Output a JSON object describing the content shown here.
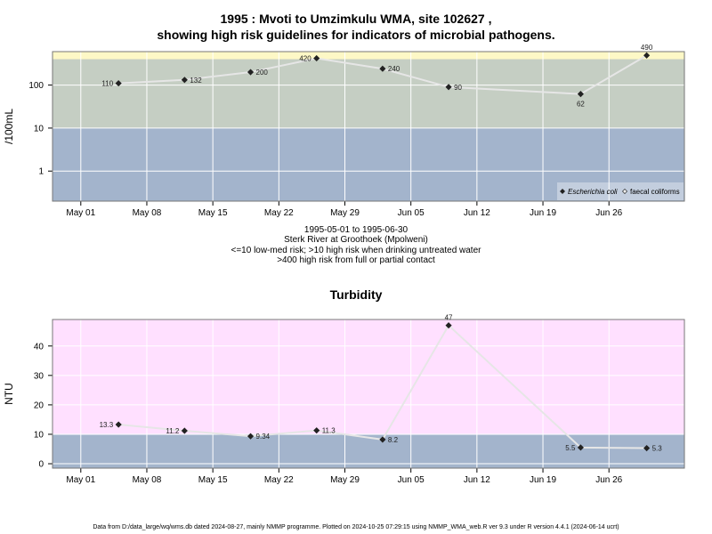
{
  "title_line1": "1995 : Mvoti to Umzimkulu WMA, site 102627 ,",
  "title_line2": "showing high risk guidelines for indicators of microbial pathogens.",
  "caption": {
    "line1": "1995-05-01 to 1995-06-30",
    "line2": "Sterk River at Groothoek (Mpolweni)",
    "line3": "<=10 low-med risk; >10 high risk when drinking untreated water",
    "line4": ">400 high risk from full or partial contact"
  },
  "footer": "Data from D:/data_large/wq/wms.db dated 2024-08-27, mainly NMMP programme. Plotted on 2024-10-25 07:29:15 using NMMP_WMA_web.R ver 9.3 under R version 4.4.1 (2024-06-14 ucrt)",
  "x_ticks": [
    {
      "label": "May 01",
      "date": "1995-05-01"
    },
    {
      "label": "May 08",
      "date": "1995-05-08"
    },
    {
      "label": "May 15",
      "date": "1995-05-15"
    },
    {
      "label": "May 22",
      "date": "1995-05-22"
    },
    {
      "label": "May 29",
      "date": "1995-05-29"
    },
    {
      "label": "Jun 05",
      "date": "1995-06-05"
    },
    {
      "label": "Jun 12",
      "date": "1995-06-12"
    },
    {
      "label": "Jun 19",
      "date": "1995-06-19"
    },
    {
      "label": "Jun 26",
      "date": "1995-06-26"
    }
  ],
  "chart_data": [
    {
      "type": "line",
      "ylabel": "/100mL",
      "y_scale": "log10",
      "xlim": [
        "1995-04-28",
        "1995-07-04"
      ],
      "ylim": [
        0.2,
        600
      ],
      "y_ticks": [
        1,
        10,
        100
      ],
      "y_tick_labels": [
        "1",
        "10",
        "100"
      ],
      "grid": true,
      "legend_position": "bottom-right",
      "bands": [
        {
          "from": 0.2,
          "to": 10,
          "color": "#a3b4cc"
        },
        {
          "from": 10,
          "to": 400,
          "color": "#c5cec3"
        },
        {
          "from": 400,
          "to": 600,
          "color": "#fdf8c6"
        }
      ],
      "series": [
        {
          "name": "Escherichia coli",
          "marker": "filled-diamond",
          "points": [
            {
              "date": "1995-05-05",
              "value": 110,
              "label": "110",
              "label_side": "left"
            },
            {
              "date": "1995-05-12",
              "value": 132,
              "label": "132",
              "label_side": "right"
            },
            {
              "date": "1995-05-19",
              "value": 200,
              "label": "200",
              "label_side": "right"
            },
            {
              "date": "1995-05-26",
              "value": 420,
              "label": "420",
              "label_side": "left"
            },
            {
              "date": "1995-06-02",
              "value": 240,
              "label": "240",
              "label_side": "right"
            },
            {
              "date": "1995-06-09",
              "value": 90,
              "label": "90",
              "label_side": "right"
            },
            {
              "date": "1995-06-23",
              "value": 62,
              "label": "62",
              "label_side": "below"
            },
            {
              "date": "1995-06-30",
              "value": 490,
              "label": "490",
              "label_side": "above"
            }
          ]
        },
        {
          "name": "faecal coliforms",
          "marker": "open-diamond",
          "points": []
        }
      ]
    },
    {
      "type": "line",
      "title": "Turbidity",
      "ylabel": "NTU",
      "y_scale": "linear",
      "xlim": [
        "1995-04-28",
        "1995-07-04"
      ],
      "ylim": [
        -1.5,
        49
      ],
      "y_ticks": [
        0,
        10,
        20,
        30,
        40
      ],
      "y_tick_labels": [
        "0",
        "10",
        "20",
        "30",
        "40"
      ],
      "grid": true,
      "bands": [
        {
          "from": -1.5,
          "to": 10,
          "color": "#a3b4cc"
        },
        {
          "from": 10,
          "to": 49,
          "color": "#ffe0ff"
        }
      ],
      "series": [
        {
          "name": "",
          "marker": "filled-diamond",
          "points": [
            {
              "date": "1995-05-05",
              "value": 13.3,
              "label": "13.3",
              "label_side": "left"
            },
            {
              "date": "1995-05-12",
              "value": 11.2,
              "label": "11.2",
              "label_side": "left"
            },
            {
              "date": "1995-05-19",
              "value": 9.34,
              "label": "9.34",
              "label_side": "right"
            },
            {
              "date": "1995-05-26",
              "value": 11.3,
              "label": "11.3",
              "label_side": "right"
            },
            {
              "date": "1995-06-02",
              "value": 8.2,
              "label": "8.2",
              "label_side": "right"
            },
            {
              "date": "1995-06-09",
              "value": 47,
              "label": "47",
              "label_side": "above"
            },
            {
              "date": "1995-06-23",
              "value": 5.5,
              "label": "5.5",
              "label_side": "left"
            },
            {
              "date": "1995-06-30",
              "value": 5.3,
              "label": "5.3",
              "label_side": "right"
            }
          ]
        }
      ]
    }
  ]
}
